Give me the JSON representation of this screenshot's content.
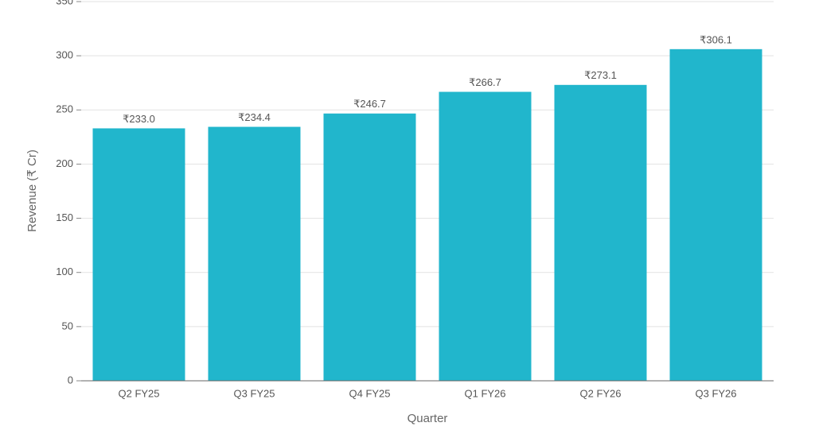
{
  "chart_data": {
    "type": "bar",
    "x_label": "Quarter",
    "y_label": "Revenue (₹ Cr)",
    "categories": [
      "Q2 FY25",
      "Q3 FY25",
      "Q4 FY25",
      "Q1 FY26",
      "Q2 FY26",
      "Q3 FY26"
    ],
    "values": [
      233.0,
      234.4,
      246.7,
      266.7,
      273.1,
      306.1
    ],
    "value_labels": [
      "₹233.0",
      "₹234.4",
      "₹246.7",
      "₹266.7",
      "₹273.1",
      "₹306.1"
    ],
    "color": "#21b6cc",
    "ylim": [
      0,
      350
    ],
    "yticks": [
      0,
      50,
      100,
      150,
      200,
      250,
      300,
      350
    ],
    "grid": true
  }
}
